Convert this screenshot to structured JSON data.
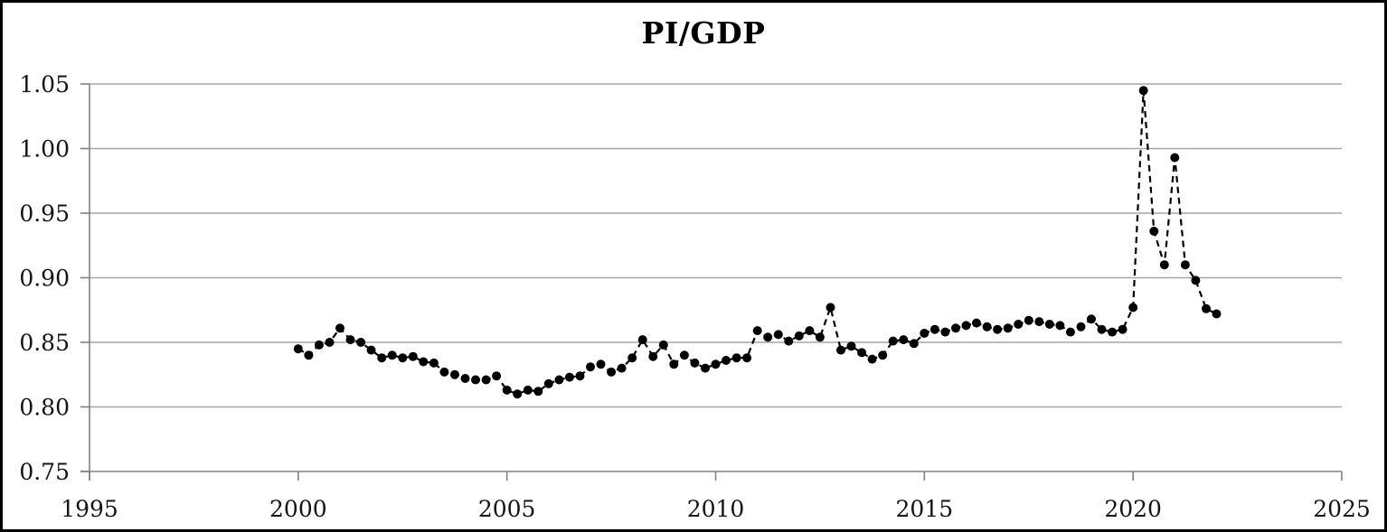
{
  "title": "PI/GDP",
  "colors": {
    "background": "#ffffff",
    "frame_border": "#000000",
    "gridline": "#a6a6a6",
    "axis": "#808080",
    "series": "#000000",
    "text": "#141414"
  },
  "chart_data": {
    "type": "line",
    "title": "PI/GDP",
    "xlabel": "",
    "ylabel": "",
    "xlim": [
      1995,
      2025
    ],
    "ylim": [
      0.75,
      1.05
    ],
    "x_ticks": [
      1995,
      2000,
      2005,
      2010,
      2015,
      2020,
      2025
    ],
    "y_ticks": [
      0.75,
      0.8,
      0.85,
      0.9,
      0.95,
      1.0,
      1.05
    ],
    "grid": true,
    "legend_position": "none",
    "marker": "filled-circle",
    "line_style": "dashed",
    "frequency": "quarterly",
    "x_start": 2000.0,
    "x_step": 0.25,
    "series": [
      {
        "name": "PI/GDP",
        "quarters": [
          "2000Q1",
          "2000Q2",
          "2000Q3",
          "2000Q4",
          "2001Q1",
          "2001Q2",
          "2001Q3",
          "2001Q4",
          "2002Q1",
          "2002Q2",
          "2002Q3",
          "2002Q4",
          "2003Q1",
          "2003Q2",
          "2003Q3",
          "2003Q4",
          "2004Q1",
          "2004Q2",
          "2004Q3",
          "2004Q4",
          "2005Q1",
          "2005Q2",
          "2005Q3",
          "2005Q4",
          "2006Q1",
          "2006Q2",
          "2006Q3",
          "2006Q4",
          "2007Q1",
          "2007Q2",
          "2007Q3",
          "2007Q4",
          "2008Q1",
          "2008Q2",
          "2008Q3",
          "2008Q4",
          "2009Q1",
          "2009Q2",
          "2009Q3",
          "2009Q4",
          "2010Q1",
          "2010Q2",
          "2010Q3",
          "2010Q4",
          "2011Q1",
          "2011Q2",
          "2011Q3",
          "2011Q4",
          "2012Q1",
          "2012Q2",
          "2012Q3",
          "2012Q4",
          "2013Q1",
          "2013Q2",
          "2013Q3",
          "2013Q4",
          "2014Q1",
          "2014Q2",
          "2014Q3",
          "2014Q4",
          "2015Q1",
          "2015Q2",
          "2015Q3",
          "2015Q4",
          "2016Q1",
          "2016Q2",
          "2016Q3",
          "2016Q4",
          "2017Q1",
          "2017Q2",
          "2017Q3",
          "2017Q4",
          "2018Q1",
          "2018Q2",
          "2018Q3",
          "2018Q4",
          "2019Q1",
          "2019Q2",
          "2019Q3",
          "2019Q4",
          "2020Q1",
          "2020Q2",
          "2020Q3",
          "2020Q4",
          "2021Q1",
          "2021Q2",
          "2021Q3",
          "2021Q4",
          "2022Q1"
        ],
        "values": [
          0.845,
          0.84,
          0.848,
          0.85,
          0.861,
          0.852,
          0.85,
          0.844,
          0.838,
          0.84,
          0.838,
          0.839,
          0.835,
          0.834,
          0.827,
          0.825,
          0.822,
          0.821,
          0.821,
          0.824,
          0.813,
          0.81,
          0.813,
          0.812,
          0.818,
          0.821,
          0.823,
          0.824,
          0.831,
          0.833,
          0.827,
          0.83,
          0.838,
          0.852,
          0.839,
          0.848,
          0.833,
          0.84,
          0.834,
          0.83,
          0.833,
          0.836,
          0.838,
          0.838,
          0.859,
          0.854,
          0.856,
          0.851,
          0.855,
          0.859,
          0.854,
          0.877,
          0.844,
          0.847,
          0.842,
          0.837,
          0.84,
          0.851,
          0.852,
          0.849,
          0.857,
          0.86,
          0.858,
          0.861,
          0.863,
          0.865,
          0.862,
          0.86,
          0.861,
          0.864,
          0.867,
          0.866,
          0.864,
          0.863,
          0.858,
          0.862,
          0.868,
          0.86,
          0.858,
          0.86,
          0.877,
          1.045,
          0.936,
          0.91,
          0.993,
          0.91,
          0.898,
          0.876,
          0.872
        ]
      }
    ]
  }
}
